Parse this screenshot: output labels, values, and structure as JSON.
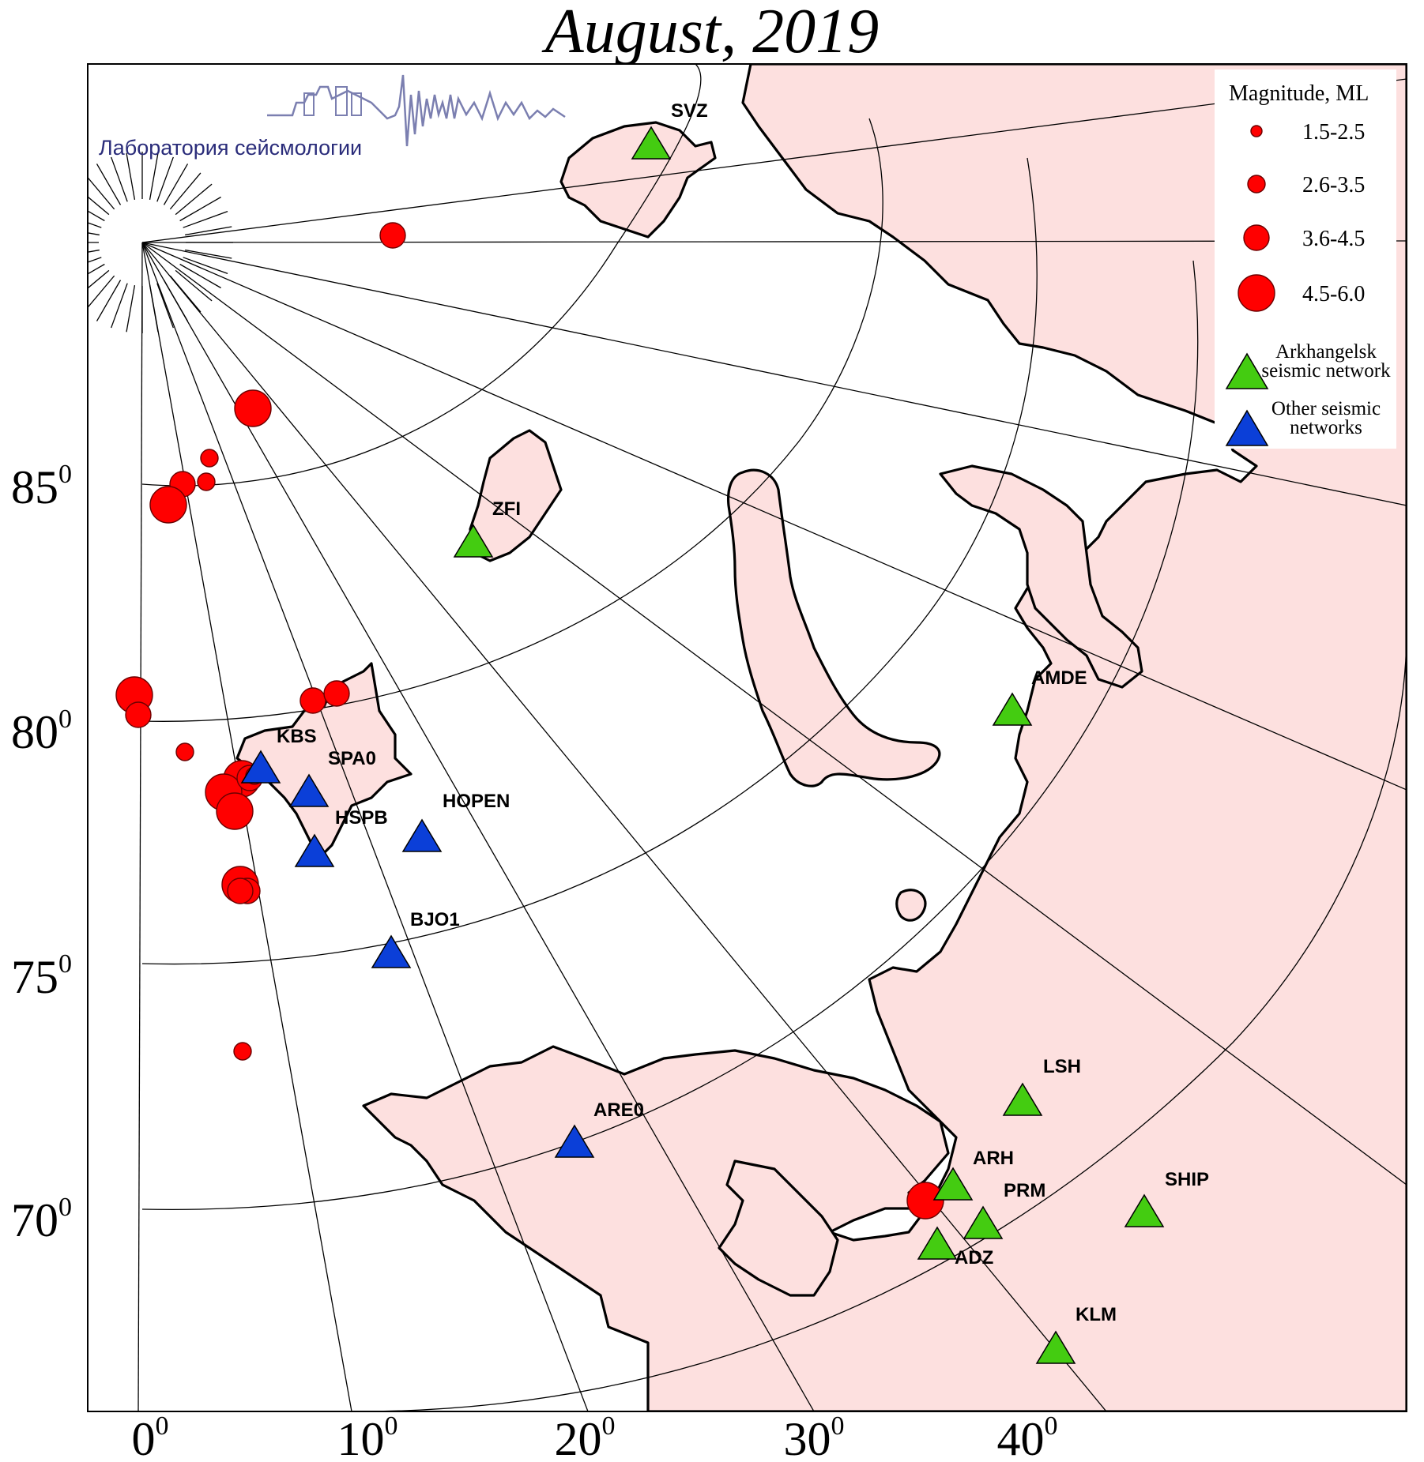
{
  "title": "August, 2019",
  "logo": {
    "text": "Лаборатория сейсмологии"
  },
  "colors": {
    "land": "#fde0df",
    "sea": "#ffffff",
    "event": "#ff0000",
    "arkhangelsk_station": "#44cc11",
    "other_station": "#0b3fd8"
  },
  "axes": {
    "lon_ticks": [
      {
        "num": "0",
        "sup": "0"
      },
      {
        "num": "10",
        "sup": "0"
      },
      {
        "num": "20",
        "sup": "0"
      },
      {
        "num": "30",
        "sup": "0"
      },
      {
        "num": "40",
        "sup": "0"
      }
    ],
    "lat_ticks": [
      {
        "num": "70",
        "sup": "0"
      },
      {
        "num": "75",
        "sup": "0"
      },
      {
        "num": "80",
        "sup": "0"
      },
      {
        "num": "85",
        "sup": "0"
      }
    ]
  },
  "legend": {
    "title": "Magnitude, ML",
    "magnitude_classes": [
      {
        "label": "1.5-2.5"
      },
      {
        "label": "2.6-3.5"
      },
      {
        "label": "3.6-4.5"
      },
      {
        "label": "4.5-6.0"
      }
    ],
    "networks": [
      {
        "line1": "Arkhangelsk",
        "line2": "seismic network",
        "color": "#44cc11"
      },
      {
        "line1": "Other seismic",
        "line2": "networks",
        "color": "#0b3fd8"
      }
    ]
  },
  "stations": [
    {
      "code": "SVZ",
      "network": "arkhangelsk"
    },
    {
      "code": "ZFI",
      "network": "arkhangelsk"
    },
    {
      "code": "AMDE",
      "network": "arkhangelsk"
    },
    {
      "code": "LSH",
      "network": "arkhangelsk"
    },
    {
      "code": "ARH",
      "network": "arkhangelsk"
    },
    {
      "code": "PRM",
      "network": "arkhangelsk"
    },
    {
      "code": "ADZ",
      "network": "arkhangelsk"
    },
    {
      "code": "SHIP",
      "network": "arkhangelsk"
    },
    {
      "code": "KLM",
      "network": "arkhangelsk"
    },
    {
      "code": "KBS",
      "network": "other"
    },
    {
      "code": "SPA0",
      "network": "other"
    },
    {
      "code": "HSPB",
      "network": "other"
    },
    {
      "code": "HOPEN",
      "network": "other"
    },
    {
      "code": "BJO1",
      "network": "other"
    },
    {
      "code": "ARE0",
      "network": "other"
    }
  ],
  "events": [
    {
      "magnitude_class": 2
    },
    {
      "magnitude_class": 3
    },
    {
      "magnitude_class": 1
    },
    {
      "magnitude_class": 2
    },
    {
      "magnitude_class": 1
    },
    {
      "magnitude_class": 3
    },
    {
      "magnitude_class": 3
    },
    {
      "magnitude_class": 2
    },
    {
      "magnitude_class": 2
    },
    {
      "magnitude_class": 2
    },
    {
      "magnitude_class": 1
    },
    {
      "magnitude_class": 3
    },
    {
      "magnitude_class": 3
    },
    {
      "magnitude_class": 3
    },
    {
      "magnitude_class": 2
    },
    {
      "magnitude_class": 3
    },
    {
      "magnitude_class": 2
    },
    {
      "magnitude_class": 2
    },
    {
      "magnitude_class": 1
    },
    {
      "magnitude_class": 3
    },
    {
      "magnitude_class": 1
    }
  ]
}
